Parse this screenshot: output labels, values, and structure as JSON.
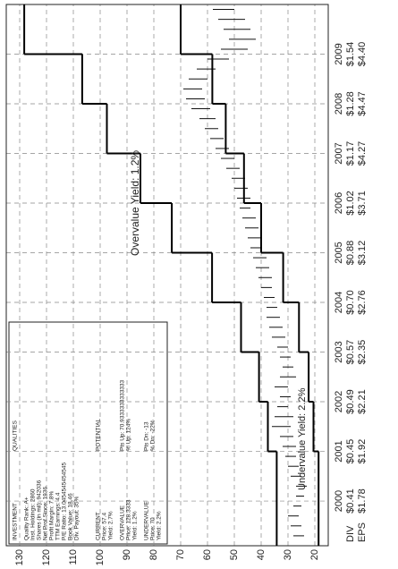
{
  "chart_data": {
    "type": "range",
    "xlim": [
      1999.1,
      2010
    ],
    "xticks": [
      2000,
      2001,
      2002,
      2003,
      2004,
      2005,
      2006,
      2007,
      2008,
      2009
    ],
    "ylim": [
      15,
      135
    ],
    "yticks": [
      20,
      30,
      40,
      50,
      60,
      70,
      80,
      90,
      100,
      110,
      120,
      130
    ],
    "grid": true,
    "row_labels": [
      "DIV",
      "EPS"
    ],
    "div_labels": [
      "$0.41",
      "$0.45",
      "$0.49",
      "$0.57",
      "$0.70",
      "$0.88",
      "$1.02",
      "$1.17",
      "$1.28",
      "$1.54"
    ],
    "eps_labels": [
      "$1.78",
      "$1.92",
      "$2.21",
      "$2.35",
      "$2.76",
      "$3.12",
      "$3.71",
      "$4.27",
      "$4.47",
      "$4.40"
    ],
    "bars": {
      "color": "#111111",
      "x": [
        1999.3,
        1999.5,
        1999.7,
        1999.9,
        2000.1,
        2000.3,
        2000.5,
        2000.7,
        2000.9,
        2001.1,
        2001.3,
        2001.5,
        2001.7,
        2001.9,
        2002.1,
        2002.3,
        2002.5,
        2002.7,
        2002.9,
        2003.1,
        2003.3,
        2003.5,
        2003.7,
        2003.9,
        2004.1,
        2004.3,
        2004.5,
        2004.7,
        2004.9,
        2005.1,
        2005.3,
        2005.5,
        2005.7,
        2005.9,
        2006.1,
        2006.3,
        2006.5,
        2006.7,
        2006.9,
        2007.1,
        2007.3,
        2007.5,
        2007.7,
        2007.9,
        2008.1,
        2008.3,
        2008.5,
        2008.7,
        2008.9,
        2009.1,
        2009.3,
        2009.5,
        2009.7,
        2009.9
      ],
      "low": [
        24,
        25,
        26,
        25,
        24,
        23,
        25,
        26,
        27,
        27,
        28,
        29,
        28,
        30,
        29,
        30,
        27,
        28,
        29,
        30,
        31,
        32,
        33,
        34,
        35,
        36,
        36,
        37,
        38,
        40,
        40,
        41,
        42,
        44,
        44,
        45,
        46,
        48,
        50,
        52,
        54,
        56,
        57,
        59,
        61,
        62,
        60,
        57,
        52,
        45,
        42,
        44,
        46,
        50
      ],
      "high": [
        28,
        29,
        30,
        28,
        27,
        27,
        29,
        30,
        31,
        32,
        33,
        36,
        35,
        34,
        33,
        35,
        33,
        32,
        33,
        34,
        36,
        37,
        38,
        38,
        39,
        40,
        41,
        42,
        43,
        44,
        45,
        46,
        47,
        48,
        49,
        50,
        51,
        53,
        55,
        57,
        59,
        61,
        63,
        66,
        68,
        69,
        67,
        64,
        60,
        55,
        52,
        54,
        56,
        58
      ]
    },
    "bands": [
      {
        "name": "Overvalue Yield: 1.2%",
        "color": "#000000",
        "values": [
          34.2,
          37.5,
          40.8,
          47.5,
          58.3,
          73.3,
          85,
          97.5,
          106.7,
          128.3
        ]
      },
      {
        "name": "Undervalue Yield: 2.2%",
        "color": "#000000",
        "values": [
          18.6,
          20.5,
          22.3,
          25.9,
          31.8,
          40,
          46.4,
          53.2,
          58.2,
          70
        ]
      }
    ],
    "info": {
      "left_header": "INVESTMENT",
      "right_header": "QUALITIES",
      "qualities": [
        "Quality Rank: A+",
        "Inst. Holdings: 2860",
        "Shares (in mil): 942036",
        "Net Prof Since: 1936",
        "Profit Margin: 7.8%",
        "TTM Earnings: 4.4",
        "P/E Ratio: 13.0454545454545",
        "Book Value: 18.46",
        "Div. Payout: 35%"
      ],
      "potential_header": "POTENTIAL",
      "current": [
        "CURRENT",
        "Price: 57.4",
        "Yield: 2.7%"
      ],
      "overvalue": [
        "OVERVALUE",
        "Price: 128.3333",
        "Yield: 1.2%"
      ],
      "overvalue_potential": [
        "Pts Up: 70.9333333333333",
        "% Up: 124%"
      ],
      "undervalue": [
        "UNDERVALUE",
        "Price: 70",
        "Yield: 2.2%"
      ],
      "undervalue_potential": [
        "Pts Dn: -13",
        "% Dn: -22%"
      ]
    }
  }
}
